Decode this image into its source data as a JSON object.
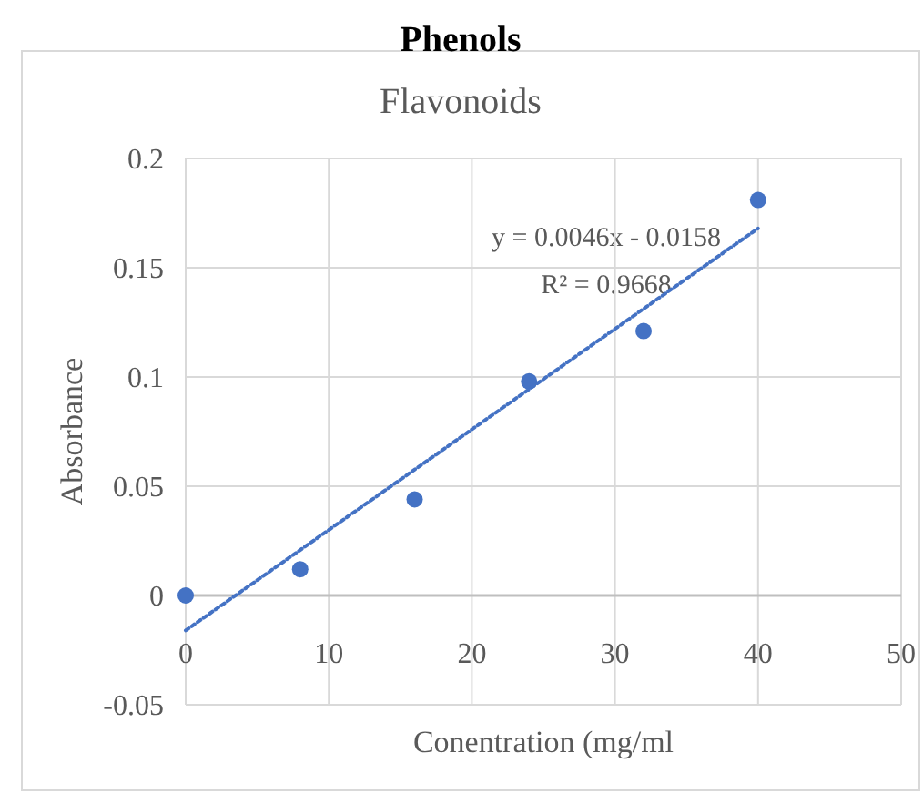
{
  "chart_data": {
    "type": "scatter",
    "title": "Flavonoids",
    "xlabel": "Conentration (mg/ml",
    "ylabel": "Absorbance",
    "annotations": [
      "Phenols",
      "y = 0.0046x - 0.0158",
      "R² = 0.9668"
    ],
    "series": [
      {
        "color": "#4472c4",
        "x": [
          0,
          8,
          16,
          24,
          32,
          40
        ],
        "values": [
          0,
          0.012,
          0.044,
          0.098,
          0.121,
          0.181
        ],
        "marker": "circle"
      },
      {
        "type": "line",
        "color": "#4472c4",
        "x": [
          0,
          40
        ],
        "values": [
          -0.016,
          0.168
        ],
        "line_style": "dotted",
        "marker": "none"
      }
    ],
    "xlim": [
      0,
      50
    ],
    "xticks": [
      0,
      10,
      20,
      30,
      40,
      50
    ],
    "ylim": [
      -0.05,
      0.2
    ],
    "yticks": [
      -0.05,
      0,
      0.05,
      0.1,
      0.15,
      0.2
    ],
    "grid": true
  }
}
